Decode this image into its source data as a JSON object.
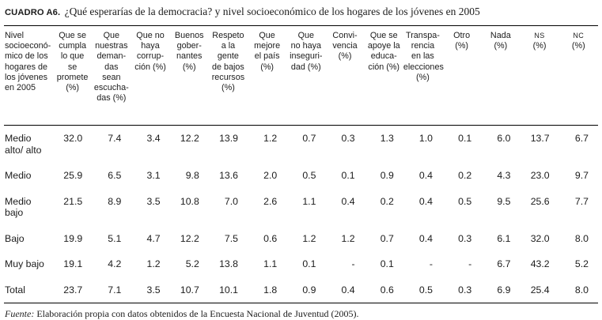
{
  "title": {
    "label": "CUADRO A6.",
    "text": "¿Qué esperarías de la democracia? y nivel socioeconómico de los hogares de los jóvenes en 2005"
  },
  "table": {
    "row_header": "Nivel\nsocioeconó-\nmico de los\nhogares de\nlos jóvenes\nen 2005",
    "columns": [
      "Que se\ncumpla\nlo que\nse\npromete\n(%)",
      "Que\nnuestras\ndeman-\ndas\nsean\nescucha-\ndas (%)",
      "Que no\nhaya\ncorrup-\nción (%)",
      "Buenos\ngober-\nnantes\n(%)",
      "Respeto\na la\ngente\nde bajos\nrecursos\n(%)",
      "Que\nmejore\nel país\n(%)",
      "Que\nno haya\ninseguri-\ndad (%)",
      "Convi-\nvencia\n(%)",
      "Que se\napoye la\neduca-\nción (%)",
      "Transpa-\nrencia\nen las\nelecciones\n(%)",
      "Otro\n(%)",
      "Nada\n(%)",
      "NS\n(%)",
      "NC\n(%)"
    ],
    "rows": [
      {
        "label": "Medio\nalto/ alto",
        "values": [
          "32.0",
          "7.4",
          "3.4",
          "12.2",
          "13.9",
          "1.2",
          "0.7",
          "0.3",
          "1.3",
          "1.0",
          "0.1",
          "6.0",
          "13.7",
          "6.7"
        ]
      },
      {
        "label": "Medio",
        "values": [
          "25.9",
          "6.5",
          "3.1",
          "9.8",
          "13.6",
          "2.0",
          "0.5",
          "0.1",
          "0.9",
          "0.4",
          "0.2",
          "4.3",
          "23.0",
          "9.7"
        ]
      },
      {
        "label": "Medio\nbajo",
        "values": [
          "21.5",
          "8.9",
          "3.5",
          "10.8",
          "7.0",
          "2.6",
          "1.1",
          "0.4",
          "0.2",
          "0.4",
          "0.5",
          "9.5",
          "25.6",
          "7.7"
        ]
      },
      {
        "label": "Bajo",
        "values": [
          "19.9",
          "5.1",
          "4.7",
          "12.2",
          "7.5",
          "0.6",
          "1.2",
          "1.2",
          "0.7",
          "0.4",
          "0.3",
          "6.1",
          "32.0",
          "8.0"
        ]
      },
      {
        "label": "Muy bajo",
        "values": [
          "19.1",
          "4.2",
          "1.2",
          "5.2",
          "13.8",
          "1.1",
          "0.1",
          "-",
          "0.1",
          "-",
          "-",
          "6.7",
          "43.2",
          "5.2"
        ]
      },
      {
        "label": "Total",
        "values": [
          "23.7",
          "7.1",
          "3.5",
          "10.7",
          "10.1",
          "1.8",
          "0.9",
          "0.4",
          "0.6",
          "0.5",
          "0.3",
          "6.9",
          "25.4",
          "8.0"
        ]
      }
    ]
  },
  "footer": {
    "source_label": "Fuente:",
    "source_text": " Elaboración propia con datos obtenidos de la Encuesta Nacional de Juventud (2005)."
  }
}
